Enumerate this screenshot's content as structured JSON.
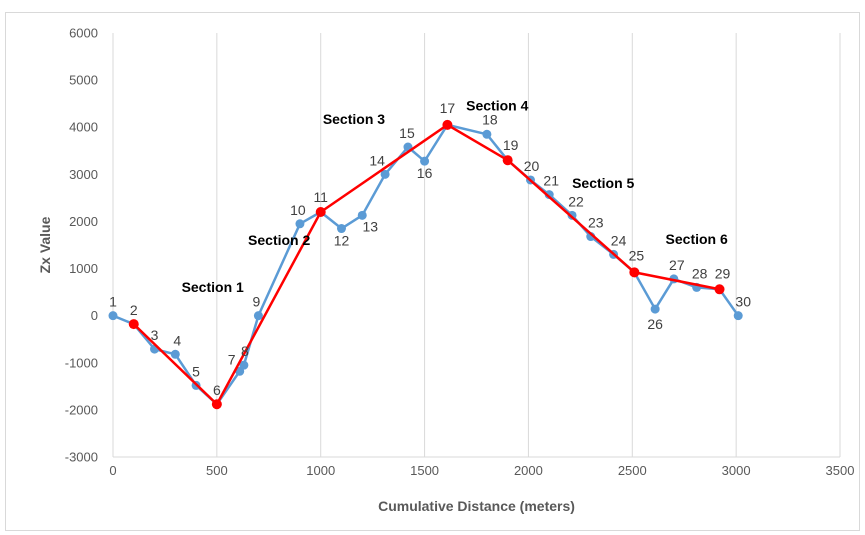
{
  "chart_data": {
    "type": "scatter",
    "xlabel": "Cumulative Distance (meters)",
    "ylabel": "Zx Value",
    "xlim": [
      0,
      3500
    ],
    "ylim": [
      -3000,
      6000
    ],
    "x_ticks": [
      0,
      500,
      1000,
      1500,
      2000,
      2500,
      3000,
      3500
    ],
    "y_ticks": [
      -3000,
      -2000,
      -1000,
      0,
      1000,
      2000,
      3000,
      4000,
      5000,
      6000
    ],
    "grid": "vertical",
    "legend": "none",
    "colors": {
      "observed": "#5b9bd5",
      "sections": "#ff0000",
      "grid": "#d9d9d9"
    },
    "series": [
      {
        "points": [
          {
            "label": "1",
            "x": 0,
            "y": 0
          },
          {
            "label": "2",
            "x": 100,
            "y": -180
          },
          {
            "label": "3",
            "x": 200,
            "y": -710
          },
          {
            "label": "4",
            "x": 300,
            "y": -820
          },
          {
            "label": "5",
            "x": 400,
            "y": -1480
          },
          {
            "label": "6",
            "x": 500,
            "y": -1880
          },
          {
            "label": "7",
            "x": 610,
            "y": -1180
          },
          {
            "label": "8",
            "x": 630,
            "y": -1050
          },
          {
            "label": "9",
            "x": 700,
            "y": 0
          },
          {
            "label": "10",
            "x": 900,
            "y": 1950
          },
          {
            "label": "11",
            "x": 1000,
            "y": 2200
          },
          {
            "label": "12",
            "x": 1100,
            "y": 1850
          },
          {
            "label": "13",
            "x": 1200,
            "y": 2130
          },
          {
            "label": "14",
            "x": 1310,
            "y": 3000
          },
          {
            "label": "15",
            "x": 1420,
            "y": 3580
          },
          {
            "label": "16",
            "x": 1500,
            "y": 3280
          },
          {
            "label": "17",
            "x": 1610,
            "y": 4050
          },
          {
            "label": "18",
            "x": 1800,
            "y": 3850
          },
          {
            "label": "19",
            "x": 1900,
            "y": 3300
          },
          {
            "label": "20",
            "x": 2010,
            "y": 2880
          },
          {
            "label": "21",
            "x": 2100,
            "y": 2570
          },
          {
            "label": "22",
            "x": 2210,
            "y": 2130
          },
          {
            "label": "23",
            "x": 2300,
            "y": 1680
          },
          {
            "label": "24",
            "x": 2410,
            "y": 1300
          },
          {
            "label": "25",
            "x": 2510,
            "y": 920
          },
          {
            "label": "26",
            "x": 2610,
            "y": 140
          },
          {
            "label": "27",
            "x": 2700,
            "y": 780
          },
          {
            "label": "28",
            "x": 2810,
            "y": 600
          },
          {
            "label": "29",
            "x": 2920,
            "y": 560
          },
          {
            "label": "30",
            "x": 3010,
            "y": 0
          }
        ]
      },
      {
        "points": [
          {
            "x": 100,
            "y": -180
          },
          {
            "x": 500,
            "y": -1880
          },
          {
            "x": 1000,
            "y": 2200
          },
          {
            "x": 1610,
            "y": 4050
          },
          {
            "x": 1900,
            "y": 3300
          },
          {
            "x": 2510,
            "y": 920
          },
          {
            "x": 2920,
            "y": 560
          }
        ]
      }
    ],
    "annotations": [
      {
        "text": "Section 1",
        "x": 480,
        "y": 500
      },
      {
        "text": "Section 2",
        "x": 800,
        "y": 1500
      },
      {
        "text": "Section 3",
        "x": 1160,
        "y": 4070
      },
      {
        "text": "Section 4",
        "x": 1850,
        "y": 4360
      },
      {
        "text": "Section 5",
        "x": 2360,
        "y": 2710
      },
      {
        "text": "Section 6",
        "x": 2810,
        "y": 1520
      }
    ]
  }
}
